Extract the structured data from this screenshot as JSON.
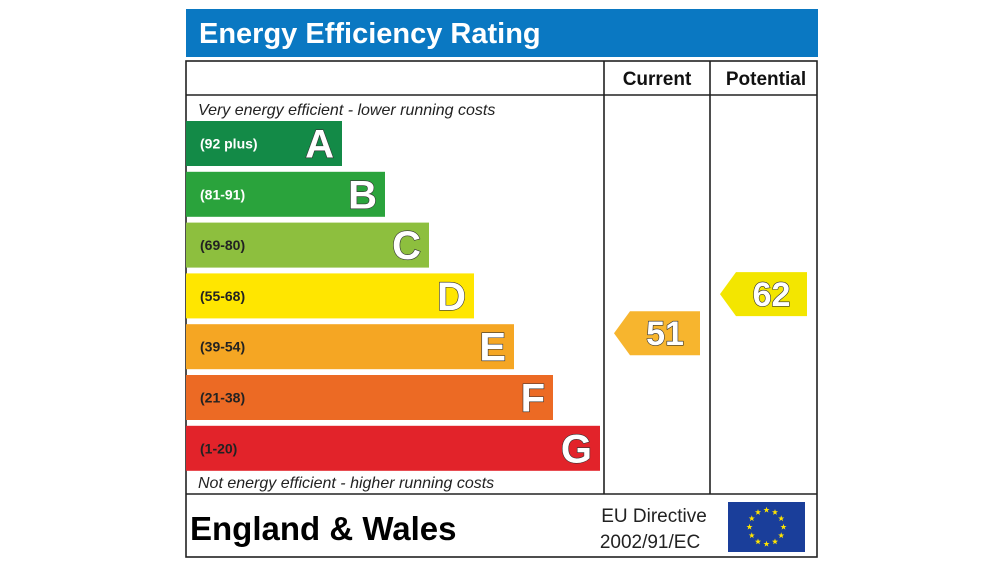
{
  "chart_data": {
    "type": "bar",
    "title": "Energy Efficiency Rating",
    "columns": {
      "current": "Current",
      "potential": "Potential"
    },
    "top_note": "Very energy efficient - lower running costs",
    "bottom_note": "Not energy efficient - higher running costs",
    "bands": [
      {
        "letter": "A",
        "range": "(92 plus)",
        "color": "#008054"
      },
      {
        "letter": "B",
        "range": "(81-91)",
        "color": "#19b459"
      },
      {
        "letter": "C",
        "range": "(69-80)",
        "color": "#8dce46"
      },
      {
        "letter": "D",
        "range": "(55-68)",
        "color": "#ffd500"
      },
      {
        "letter": "E",
        "range": "(39-54)",
        "color": "#fcaa65"
      },
      {
        "letter": "F",
        "range": "(21-38)",
        "color": "#ef8023"
      },
      {
        "letter": "G",
        "range": "(1-20)",
        "color": "#e9153b"
      }
    ],
    "current": {
      "value": 51,
      "band": "E",
      "color": "#f7b52e"
    },
    "potential": {
      "value": 62,
      "band": "D",
      "color": "#f3e600"
    },
    "region": "England & Wales",
    "directive_line1": "EU Directive",
    "directive_line2": "2002/91/EC"
  },
  "colors": {
    "title_bg": "#0a78c2",
    "band_colors_rendered": [
      "#138a47",
      "#2aa33c",
      "#8dbf3e",
      "#ffe600",
      "#f5a623",
      "#ec6a24",
      "#e2232a"
    ],
    "eu_flag": "#1a3e9a",
    "eu_stars": "#ffe400"
  }
}
